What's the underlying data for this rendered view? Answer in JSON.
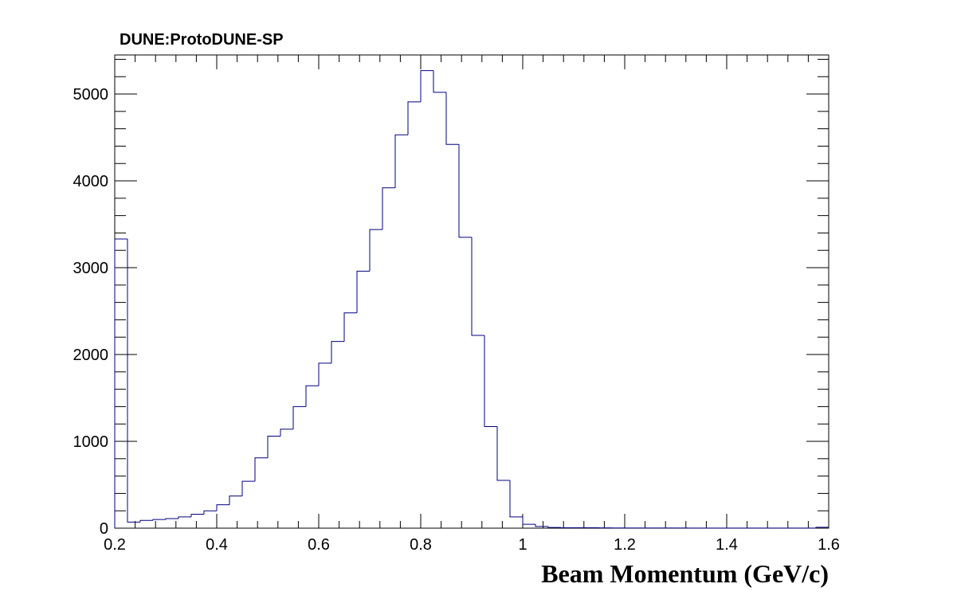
{
  "chart_data": {
    "type": "bar",
    "title": "DUNE:ProtoDUNE-SP",
    "xlabel": "Beam Momentum (GeV/c)",
    "ylabel": "",
    "xlim": [
      0.2,
      1.6
    ],
    "ylim": [
      0,
      5450
    ],
    "grid": false,
    "x_ticks": [
      0.2,
      0.4,
      0.6,
      0.8,
      1.0,
      1.2,
      1.4,
      1.6
    ],
    "x_tick_labels": [
      "0.2",
      "0.4",
      "0.6",
      "0.8",
      "1",
      "1.2",
      "1.4",
      "1.6"
    ],
    "y_ticks": [
      0,
      1000,
      2000,
      3000,
      4000,
      5000
    ],
    "y_tick_labels": [
      "0",
      "1000",
      "2000",
      "3000",
      "4000",
      "5000"
    ],
    "line_color": "#000080",
    "bin_width": 0.025,
    "bin_low_edges": [
      0.2,
      0.225,
      0.25,
      0.275,
      0.3,
      0.325,
      0.35,
      0.375,
      0.4,
      0.425,
      0.45,
      0.475,
      0.5,
      0.525,
      0.55,
      0.575,
      0.6,
      0.625,
      0.65,
      0.675,
      0.7,
      0.725,
      0.75,
      0.775,
      0.8,
      0.825,
      0.85,
      0.875,
      0.9,
      0.925,
      0.95,
      0.975,
      1.0,
      1.025,
      1.05,
      1.075,
      1.1,
      1.125,
      1.15,
      1.175,
      1.2,
      1.225,
      1.25,
      1.275,
      1.3,
      1.325,
      1.35,
      1.375,
      1.4,
      1.425,
      1.45,
      1.475,
      1.5,
      1.525,
      1.55,
      1.575
    ],
    "values": [
      3330,
      70,
      90,
      100,
      110,
      130,
      160,
      200,
      270,
      370,
      540,
      810,
      1060,
      1140,
      1400,
      1640,
      1900,
      2150,
      2480,
      2960,
      3440,
      3920,
      4530,
      4910,
      5270,
      5020,
      4420,
      3350,
      2220,
      1170,
      550,
      130,
      45,
      20,
      8,
      5,
      5,
      5,
      3,
      2,
      2,
      2,
      2,
      2,
      2,
      1,
      1,
      1,
      1,
      1,
      1,
      1,
      1,
      1,
      1,
      10
    ]
  }
}
